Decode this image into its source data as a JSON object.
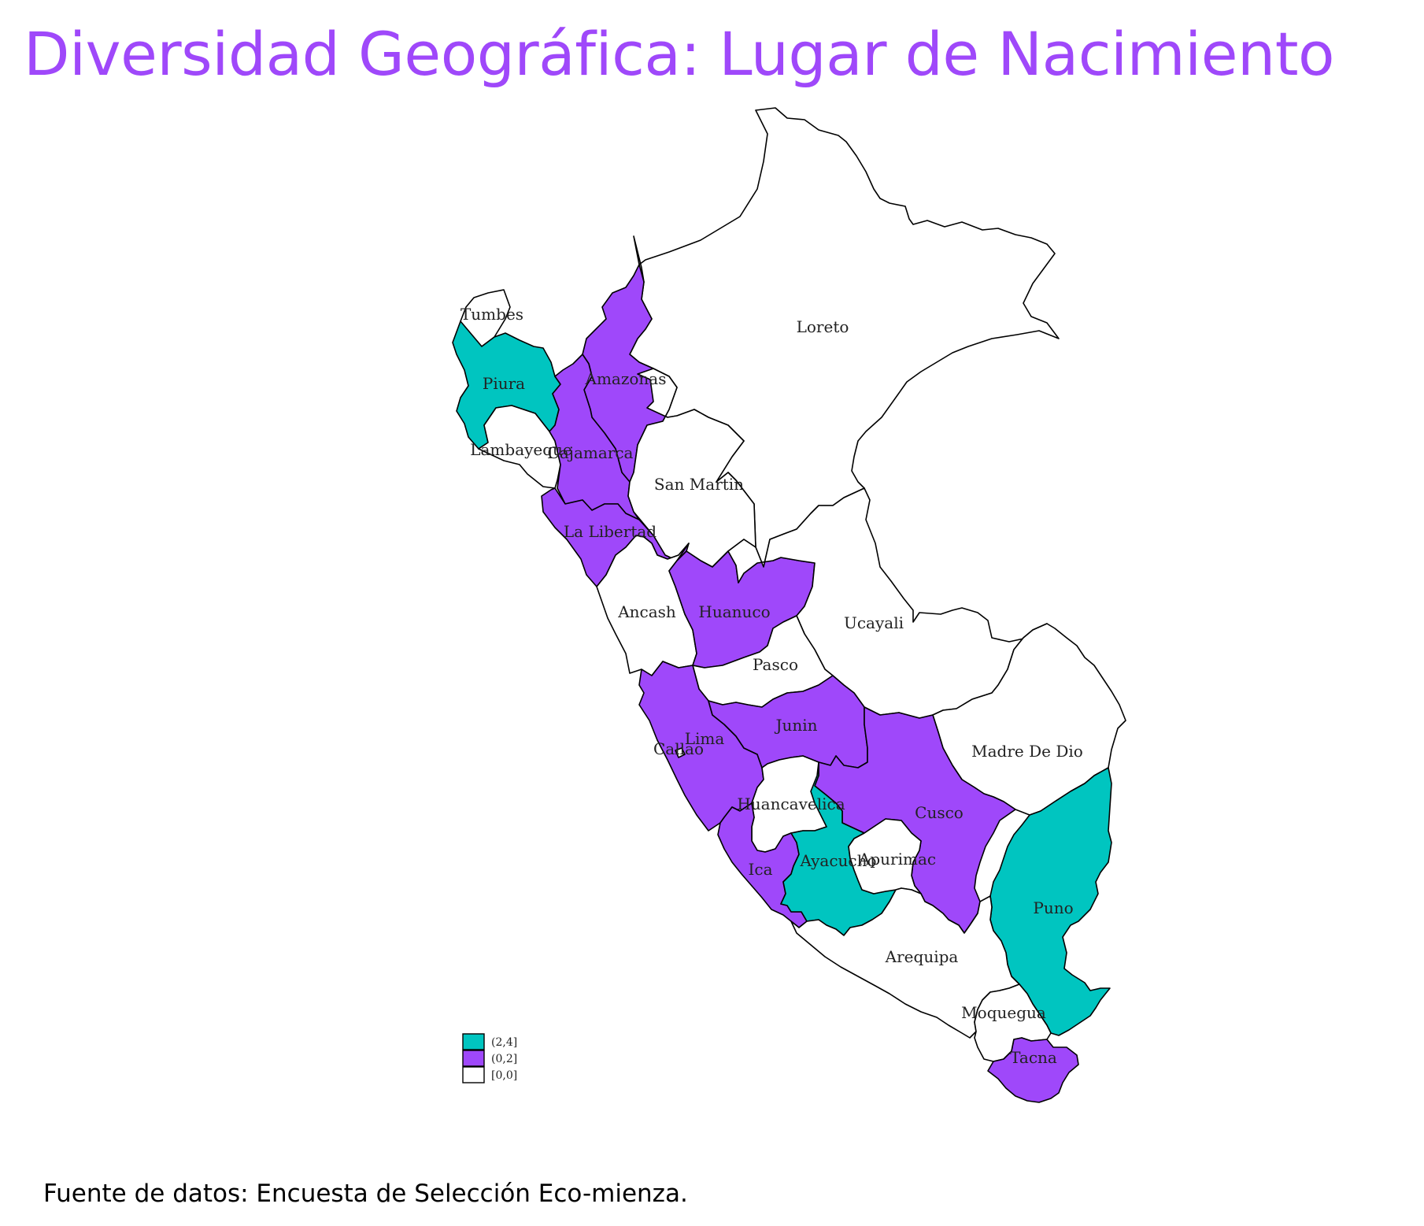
{
  "title": "Diversidad Geográfica: Lugar de Nacimiento",
  "source": "Fuente de datos: Encuesta de Selección Eco-mienza.",
  "colors": {
    "high": "#00c5c0",
    "mid": "#9f48fa",
    "none": "#ffffff",
    "title": "#9f48fa"
  },
  "legend": [
    {
      "label": "(2,4]",
      "color": "#00c5c0"
    },
    {
      "label": "(0,2]",
      "color": "#9f48fa"
    },
    {
      "label": "[0,0]",
      "color": "#ffffff"
    }
  ],
  "regions": [
    {
      "name": "Loreto",
      "class": "[0,0]"
    },
    {
      "name": "Tumbes",
      "class": "[0,0]"
    },
    {
      "name": "Piura",
      "class": "(2,4]"
    },
    {
      "name": "Amazonas",
      "class": "(0,2]"
    },
    {
      "name": "Lambayeque",
      "class": "[0,0]"
    },
    {
      "name": "Cajamarca",
      "class": "(0,2]"
    },
    {
      "name": "San Martin",
      "class": "[0,0]"
    },
    {
      "name": "La Libertad",
      "class": "(0,2]"
    },
    {
      "name": "Ancash",
      "class": "[0,0]"
    },
    {
      "name": "Huanuco",
      "class": "(0,2]"
    },
    {
      "name": "Ucayali",
      "class": "[0,0]"
    },
    {
      "name": "Pasco",
      "class": "[0,0]"
    },
    {
      "name": "Lima",
      "class": "(0,2]"
    },
    {
      "name": "Callao",
      "class": "[0,0]"
    },
    {
      "name": "Junin",
      "class": "(0,2]"
    },
    {
      "name": "Madre De Dio",
      "class": "[0,0]"
    },
    {
      "name": "Huancavelica",
      "class": "[0,0]"
    },
    {
      "name": "Cusco",
      "class": "(0,2]"
    },
    {
      "name": "Ica",
      "class": "(0,2]"
    },
    {
      "name": "Ayacucho",
      "class": "(2,4]"
    },
    {
      "name": "Apurimac",
      "class": "[0,0]"
    },
    {
      "name": "Puno",
      "class": "(2,4]"
    },
    {
      "name": "Arequipa",
      "class": "[0,0]"
    },
    {
      "name": "Moquegua",
      "class": "[0,0]"
    },
    {
      "name": "Tacna",
      "class": "(0,2]"
    }
  ]
}
